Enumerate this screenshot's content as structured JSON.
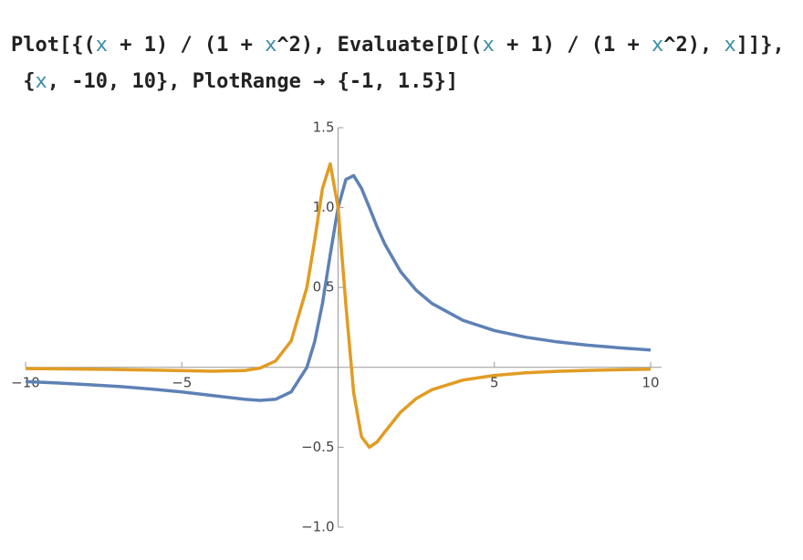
{
  "input": {
    "lines": [
      [
        {
          "text": "Plot[{("
        },
        {
          "text": "x",
          "color": "#3a8ea5"
        },
        {
          "text": " + 1) / (1 + "
        },
        {
          "text": "x",
          "color": "#3a8ea5"
        },
        {
          "text": "^2), Evaluate[D[("
        },
        {
          "text": "x",
          "color": "#3a8ea5"
        },
        {
          "text": " + 1) / (1 + "
        },
        {
          "text": "x",
          "color": "#3a8ea5"
        },
        {
          "text": "^2), "
        },
        {
          "text": "x",
          "color": "#3a8ea5"
        },
        {
          "text": "]]},"
        }
      ],
      [
        {
          "text": " {"
        },
        {
          "text": "x",
          "color": "#3a8ea5"
        },
        {
          "text": ", -10, 10}, PlotRange → {-1, 1.5}]"
        }
      ]
    ]
  },
  "chart_data": {
    "type": "line",
    "x": [
      -10,
      -9,
      -8,
      -7,
      -6,
      -5,
      -4,
      -3,
      -2.5,
      -2,
      -1.5,
      -1,
      -0.75,
      -0.5,
      -0.25,
      0,
      0.25,
      0.5,
      0.75,
      1,
      1.25,
      1.5,
      2,
      2.5,
      3,
      4,
      5,
      6,
      7,
      8,
      9,
      10
    ],
    "series": [
      {
        "color": "#5e81b5",
        "values": [
          -0.0891,
          -0.0976,
          -0.1077,
          -0.12,
          -0.1351,
          -0.1538,
          -0.1765,
          -0.2,
          -0.2069,
          -0.2,
          -0.1538,
          0,
          0.16,
          0.4,
          0.7059,
          1,
          1.1765,
          1.2,
          1.12,
          1,
          0.878,
          0.7692,
          0.6,
          0.4828,
          0.4,
          0.2941,
          0.2308,
          0.1892,
          0.16,
          0.1385,
          0.122,
          0.1089
        ]
      },
      {
        "color": "#e19c24",
        "values": [
          -0.0077,
          -0.0092,
          -0.0111,
          -0.0136,
          -0.0168,
          -0.0207,
          -0.0242,
          -0.02,
          -0.0048,
          0.04,
          0.1657,
          0.5,
          0.7936,
          1.12,
          1.2733,
          1,
          0.3875,
          -0.16,
          -0.4352,
          -0.5,
          -0.4664,
          -0.4024,
          -0.28,
          -0.195,
          -0.14,
          -0.0796,
          -0.0503,
          -0.0343,
          -0.0248,
          -0.0187,
          -0.0146,
          -0.0117
        ]
      }
    ],
    "xlim": [
      -10,
      10
    ],
    "ylim": [
      -1,
      1.5
    ],
    "xticks": [
      {
        "value": -10,
        "label": "−10"
      },
      {
        "value": -5,
        "label": "−5"
      },
      5,
      10
    ],
    "yticks": [
      {
        "value": -1,
        "label": "−1.0"
      },
      {
        "value": -0.5,
        "label": "−0.5"
      },
      0.5,
      {
        "value": 1,
        "label": "1.0"
      },
      1.5
    ]
  }
}
